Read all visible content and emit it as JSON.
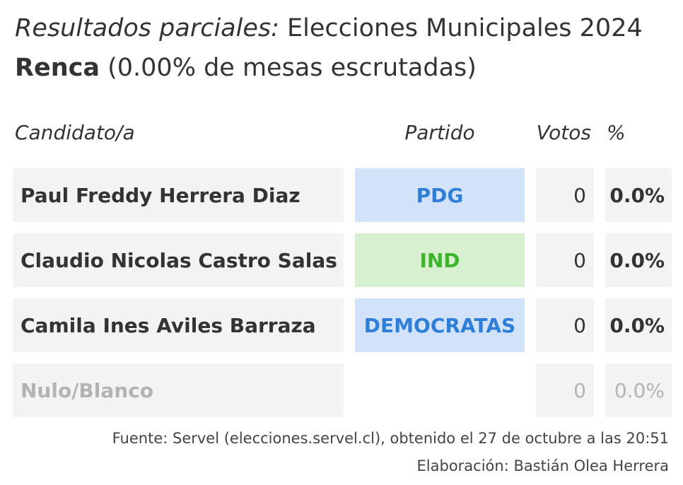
{
  "header": {
    "title_italic": "Resultados parciales:",
    "title_rest": " Elecciones Municipales 2024",
    "commune": "Renca",
    "subtitle_rest": " (0.00% de mesas escrutadas)"
  },
  "columns": {
    "candidate": "Candidato/a",
    "party": "Partido",
    "votes": "Votos",
    "percent": "%"
  },
  "rows": [
    {
      "name": "Paul Freddy Herrera Diaz",
      "party": "PDG",
      "votes": "0",
      "percent": "0.0%",
      "party_bg": "#d3e3f7",
      "party_color": "#2f7fd8"
    },
    {
      "name": "Claudio Nicolas Castro Salas",
      "party": "IND",
      "votes": "0",
      "percent": "0.0%",
      "party_bg": "#d6f0d0",
      "party_color": "#3cb52a"
    },
    {
      "name": "Camila Ines Aviles Barraza",
      "party": "DEMOCRATAS",
      "votes": "0",
      "percent": "0.0%",
      "party_bg": "#d3e3f7",
      "party_color": "#2f7fd8"
    },
    {
      "name": "Nulo/Blanco",
      "party": "",
      "votes": "0",
      "percent": "0.0%",
      "party_bg": "",
      "party_color": ""
    }
  ],
  "footer": {
    "source": "Fuente: Servel (elecciones.servel.cl), obtenido el 27 de octubre a las 20:51",
    "credit": "Elaboración: Bastián Olea Herrera"
  }
}
